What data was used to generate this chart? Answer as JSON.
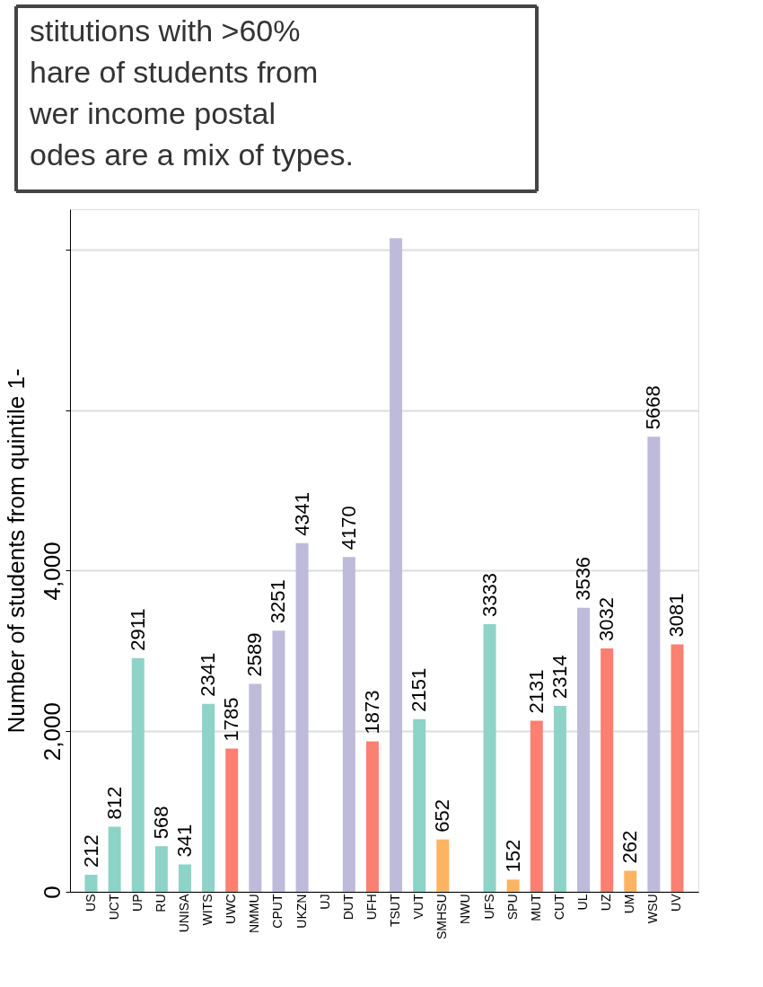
{
  "chart_data": {
    "type": "bar",
    "ylabel": "Number of students from quintile 1-",
    "categories": [
      "US",
      "UCT",
      "UP",
      "RU",
      "UNISA",
      "WITS",
      "UWC",
      "NMMU",
      "CPUT",
      "UKZN",
      "UJ",
      "DUT",
      "UFH",
      "TSUT",
      "VUT",
      "SMHSU",
      "NWU",
      "UFS",
      "SPU",
      "MUT",
      "CUT",
      "UL",
      "UZ",
      "UM",
      "WSU",
      "UV"
    ],
    "values": [
      212,
      812,
      2911,
      568,
      341,
      2341,
      1785,
      2589,
      3251,
      4341,
      null,
      4170,
      1873,
      8140,
      2151,
      652,
      null,
      3333,
      152,
      2131,
      2314,
      3536,
      3032,
      262,
      5668,
      3081
    ],
    "value_labels": [
      "212",
      "812",
      "2911",
      "568",
      "341",
      "2341",
      "1785",
      "2589",
      "3251",
      "4341",
      null,
      "4170",
      "1873",
      null,
      "2151",
      "652",
      null,
      "3333",
      "152",
      "2131",
      "2314",
      "3536",
      "3032",
      "262",
      "5668",
      "3081"
    ],
    "colors": [
      "#8dd3c7",
      "#8dd3c7",
      "#8dd3c7",
      "#8dd3c7",
      "#8dd3c7",
      "#8dd3c7",
      "#fb8072",
      "#bebada",
      "#bebada",
      "#bebada",
      "#bebada",
      "#bebada",
      "#fb8072",
      "#bebada",
      "#8dd3c7",
      "#fdb462",
      "#fb8072",
      "#8dd3c7",
      "#fdb462",
      "#fb8072",
      "#8dd3c7",
      "#bebada",
      "#fb8072",
      "#fdb462",
      "#bebada",
      "#fb8072"
    ],
    "ylim": [
      0,
      8500
    ],
    "yticks": [
      {
        "value": 0,
        "label": "0"
      },
      {
        "value": 2000,
        "label": "2,000"
      },
      {
        "value": 4000,
        "label": "4,000"
      },
      {
        "value": 6000,
        "label": null
      },
      {
        "value": 8000,
        "label": null
      }
    ],
    "grid": "y",
    "annotations": [
      "stitutions with  >60%\nhare of students from\nwer income postal\nodes are a mix of types."
    ]
  }
}
